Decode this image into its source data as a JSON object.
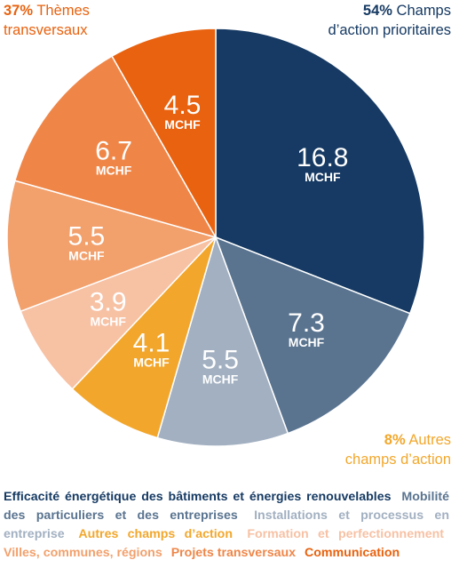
{
  "callouts": {
    "top_left": {
      "pct": "37%",
      "line1": "Thèmes",
      "line2": "transversaux"
    },
    "top_right": {
      "pct": "54%",
      "line1": "Champs",
      "line2": "d’action prioritaires"
    },
    "bottom_right": {
      "pct": "8%",
      "line1": "Autres",
      "line2": "champs d’action"
    }
  },
  "chart_data": {
    "type": "pie",
    "unit": "MCHF",
    "slices": [
      {
        "label": "Efficacité énergétique des bâtiments et énergies renouvelables",
        "value": 16.8,
        "value_label": "16.8",
        "color": "#163a63",
        "text_color": "#ffffff"
      },
      {
        "label": "Mobilité des particuliers et des entreprises",
        "value": 7.3,
        "value_label": "7.3",
        "color": "#5a7490",
        "text_color": "#ffffff"
      },
      {
        "label": "Installations et processus en entreprise",
        "value": 5.5,
        "value_label": "5.5",
        "color": "#a2b0c1",
        "text_color": "#ffffff"
      },
      {
        "label": "Autres champs d’action",
        "value": 4.1,
        "value_label": "4.1",
        "color": "#f2a72c",
        "text_color": "#ffffff"
      },
      {
        "label": "Formation et perfectionnement",
        "value": 3.9,
        "value_label": "3.9",
        "color": "#f7c1a4",
        "text_color": "#ffffff"
      },
      {
        "label": "Villes, communes, régions",
        "value": 5.5,
        "value_label": "5.5",
        "color": "#f2a06c",
        "text_color": "#ffffff"
      },
      {
        "label": "Projets transversaux",
        "value": 6.7,
        "value_label": "6.7",
        "color": "#ef8648",
        "text_color": "#ffffff"
      },
      {
        "label": "Communication",
        "value": 4.5,
        "value_label": "4.5",
        "color": "#e8620f",
        "text_color": "#ffffff"
      }
    ]
  },
  "legend": [
    {
      "text": "Efficacité énergétique des bâtiments et énergies renouvelables",
      "color": "#163a63"
    },
    {
      "text": "Mobilité des particuliers et des entreprises",
      "color": "#5a7490"
    },
    {
      "text": "Installations et processus en entreprise",
      "color": "#a2b0c1"
    },
    {
      "text": "Autres champs d’action",
      "color": "#f2a72c"
    },
    {
      "text": "Formation et perfectionnement",
      "color": "#f7c1a4"
    },
    {
      "text": "Villes, communes, régions",
      "color": "#f2a06c"
    },
    {
      "text": "Projets transversaux",
      "color": "#ef8648"
    },
    {
      "text": "Communication",
      "color": "#e8620f"
    }
  ]
}
